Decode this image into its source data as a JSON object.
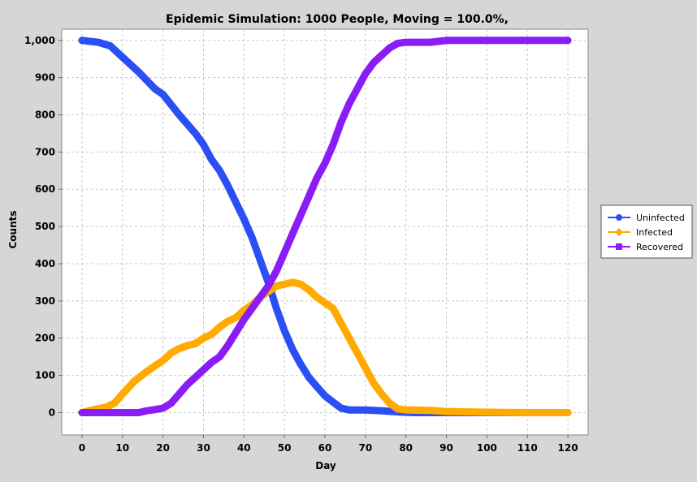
{
  "chart_data": {
    "type": "line",
    "title": "Epidemic Simulation: 1000 People, Moving = 100.0%,",
    "xlabel": "Day",
    "ylabel": "Counts",
    "xlim": [
      -5,
      125
    ],
    "ylim": [
      -60,
      1030
    ],
    "x_ticks": [
      0,
      10,
      20,
      30,
      40,
      50,
      60,
      70,
      80,
      90,
      100,
      110,
      120
    ],
    "y_ticks": [
      0,
      100,
      200,
      300,
      400,
      500,
      600,
      700,
      800,
      900,
      1000
    ],
    "y_tick_labels": [
      "0",
      "100",
      "200",
      "300",
      "400",
      "500",
      "600",
      "700",
      "800",
      "900",
      "1,000"
    ],
    "grid": true,
    "legend_position": "right",
    "series": [
      {
        "name": "Uninfected",
        "color": "#2a4ff5",
        "marker": "circle",
        "points": [
          [
            0,
            1000
          ],
          [
            4,
            995
          ],
          [
            7,
            985
          ],
          [
            10,
            955
          ],
          [
            14,
            915
          ],
          [
            18,
            870
          ],
          [
            20,
            855
          ],
          [
            24,
            800
          ],
          [
            28,
            750
          ],
          [
            30,
            720
          ],
          [
            32,
            680
          ],
          [
            34,
            650
          ],
          [
            36,
            610
          ],
          [
            38,
            565
          ],
          [
            40,
            520
          ],
          [
            42,
            470
          ],
          [
            44,
            410
          ],
          [
            46,
            350
          ],
          [
            48,
            280
          ],
          [
            50,
            220
          ],
          [
            52,
            170
          ],
          [
            54,
            130
          ],
          [
            56,
            95
          ],
          [
            58,
            70
          ],
          [
            60,
            45
          ],
          [
            62,
            28
          ],
          [
            64,
            12
          ],
          [
            66,
            7
          ],
          [
            70,
            7
          ],
          [
            74,
            5
          ],
          [
            78,
            2
          ],
          [
            82,
            0
          ],
          [
            90,
            0
          ],
          [
            100,
            0
          ],
          [
            110,
            0
          ],
          [
            120,
            0
          ]
        ]
      },
      {
        "name": "Infected",
        "color": "#ffaa00",
        "marker": "diamond",
        "points": [
          [
            0,
            0
          ],
          [
            3,
            8
          ],
          [
            6,
            15
          ],
          [
            8,
            25
          ],
          [
            10,
            50
          ],
          [
            13,
            85
          ],
          [
            16,
            110
          ],
          [
            18,
            125
          ],
          [
            20,
            140
          ],
          [
            22,
            160
          ],
          [
            24,
            172
          ],
          [
            26,
            180
          ],
          [
            28,
            185
          ],
          [
            30,
            200
          ],
          [
            32,
            210
          ],
          [
            34,
            230
          ],
          [
            36,
            245
          ],
          [
            38,
            255
          ],
          [
            40,
            275
          ],
          [
            42,
            290
          ],
          [
            44,
            310
          ],
          [
            46,
            325
          ],
          [
            48,
            340
          ],
          [
            50,
            345
          ],
          [
            52,
            350
          ],
          [
            54,
            345
          ],
          [
            56,
            330
          ],
          [
            58,
            310
          ],
          [
            60,
            295
          ],
          [
            62,
            280
          ],
          [
            64,
            240
          ],
          [
            66,
            200
          ],
          [
            68,
            160
          ],
          [
            70,
            120
          ],
          [
            72,
            80
          ],
          [
            74,
            50
          ],
          [
            76,
            25
          ],
          [
            78,
            10
          ],
          [
            80,
            7
          ],
          [
            86,
            6
          ],
          [
            90,
            3
          ],
          [
            100,
            1
          ],
          [
            110,
            0
          ],
          [
            120,
            0
          ]
        ]
      },
      {
        "name": "Recovered",
        "color": "#8a1cf5",
        "marker": "square",
        "points": [
          [
            0,
            0
          ],
          [
            10,
            0
          ],
          [
            14,
            0
          ],
          [
            16,
            5
          ],
          [
            18,
            8
          ],
          [
            20,
            12
          ],
          [
            22,
            25
          ],
          [
            24,
            50
          ],
          [
            26,
            75
          ],
          [
            28,
            95
          ],
          [
            30,
            115
          ],
          [
            32,
            135
          ],
          [
            34,
            150
          ],
          [
            36,
            180
          ],
          [
            38,
            215
          ],
          [
            40,
            250
          ],
          [
            42,
            280
          ],
          [
            44,
            310
          ],
          [
            46,
            340
          ],
          [
            48,
            380
          ],
          [
            50,
            430
          ],
          [
            52,
            480
          ],
          [
            54,
            530
          ],
          [
            56,
            580
          ],
          [
            58,
            630
          ],
          [
            60,
            670
          ],
          [
            62,
            720
          ],
          [
            64,
            780
          ],
          [
            66,
            830
          ],
          [
            68,
            870
          ],
          [
            70,
            910
          ],
          [
            72,
            940
          ],
          [
            74,
            960
          ],
          [
            76,
            980
          ],
          [
            78,
            992
          ],
          [
            80,
            995
          ],
          [
            86,
            995
          ],
          [
            90,
            1000
          ],
          [
            100,
            1000
          ],
          [
            110,
            1000
          ],
          [
            120,
            1000
          ]
        ]
      }
    ]
  }
}
